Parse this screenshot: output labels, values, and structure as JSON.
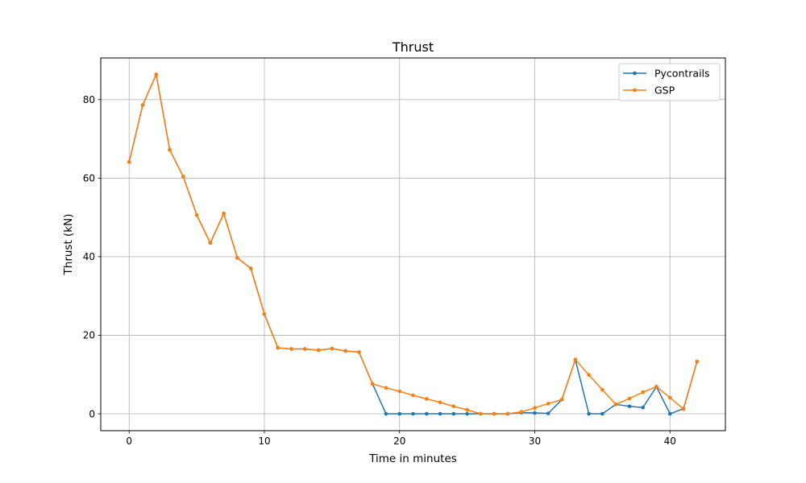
{
  "chart_data": {
    "type": "line",
    "title": "Thrust",
    "xlabel": "Time in minutes",
    "ylabel": "Thrust (kN)",
    "xlim": [
      -2.1,
      44.1
    ],
    "ylim": [
      -4.3,
      90.6
    ],
    "xticks": [
      0,
      10,
      20,
      30,
      40
    ],
    "yticks": [
      0,
      20,
      40,
      60,
      80
    ],
    "grid": true,
    "legend_position": "top-right",
    "x": [
      0,
      1,
      2,
      3,
      4,
      5,
      6,
      7,
      8,
      9,
      10,
      11,
      12,
      13,
      14,
      15,
      16,
      17,
      18,
      19,
      20,
      21,
      22,
      23,
      24,
      25,
      26,
      27,
      28,
      29,
      30,
      31,
      32,
      33,
      34,
      35,
      36,
      37,
      38,
      39,
      40,
      41,
      42
    ],
    "series": [
      {
        "name": "Pycontrails",
        "color": "#1f77b4",
        "values": [
          64.1,
          78.6,
          86.4,
          67.2,
          60.4,
          50.6,
          43.5,
          51.0,
          39.7,
          37.0,
          25.4,
          16.8,
          16.5,
          16.5,
          16.2,
          16.6,
          16.0,
          15.7,
          7.6,
          0.0,
          0.0,
          0.0,
          0.0,
          0.0,
          0.0,
          0.0,
          0.0,
          0.0,
          0.0,
          0.3,
          0.2,
          0.1,
          3.6,
          13.8,
          0.0,
          0.0,
          2.4,
          1.9,
          1.6,
          6.9,
          0.0,
          1.3,
          13.3
        ]
      },
      {
        "name": "GSP",
        "color": "#ff7f0e",
        "values": [
          64.1,
          78.6,
          86.4,
          67.2,
          60.4,
          50.6,
          43.5,
          51.0,
          39.7,
          37.0,
          25.4,
          16.8,
          16.5,
          16.5,
          16.2,
          16.6,
          16.0,
          15.7,
          7.6,
          6.6,
          5.7,
          4.7,
          3.8,
          2.9,
          1.9,
          1.0,
          0.0,
          0.0,
          0.0,
          0.5,
          1.5,
          2.6,
          3.6,
          13.8,
          9.9,
          6.1,
          2.4,
          3.9,
          5.5,
          6.9,
          4.1,
          1.2,
          13.3
        ]
      }
    ]
  }
}
